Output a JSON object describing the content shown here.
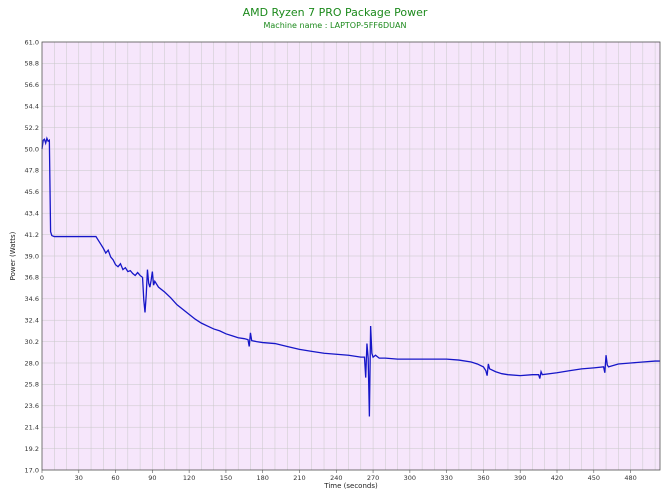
{
  "chart_data": {
    "type": "line",
    "title": "AMD Ryzen 7 PRO Package Power",
    "subtitle": "Machine name : LAPTOP-5FF6DUAN",
    "xlabel": "Time (seconds)",
    "ylabel": "Power (Watts)",
    "xlim": [
      0,
      504
    ],
    "ylim": [
      17.0,
      61.0
    ],
    "x_ticks": [
      0,
      30,
      60,
      90,
      120,
      150,
      180,
      210,
      240,
      270,
      300,
      330,
      360,
      390,
      420,
      450,
      480
    ],
    "y_ticks": [
      "17.0",
      "19.2",
      "21.4",
      "23.6",
      "25.8",
      "28.0",
      "30.2",
      "32.4",
      "34.6",
      "36.8",
      "39.0",
      "41.2",
      "43.4",
      "45.6",
      "47.8",
      "50.0",
      "52.2",
      "54.4",
      "56.6",
      "58.8",
      "61.0"
    ],
    "grid": true,
    "colors": {
      "background": "#f6e6fb",
      "grid": "#c8c8c8",
      "line": "#1616c8"
    },
    "series": [
      {
        "values": [
          [
            0,
            50.0
          ],
          [
            1,
            50.9
          ],
          [
            2,
            51.0
          ],
          [
            3,
            50.6
          ],
          [
            4,
            51.1
          ],
          [
            5,
            50.8
          ],
          [
            6,
            50.9
          ],
          [
            7,
            41.5
          ],
          [
            8,
            41.1
          ],
          [
            10,
            41.0
          ],
          [
            20,
            41.0
          ],
          [
            30,
            41.0
          ],
          [
            40,
            41.0
          ],
          [
            44,
            41.0
          ],
          [
            46,
            40.6
          ],
          [
            48,
            40.2
          ],
          [
            50,
            39.8
          ],
          [
            52,
            39.3
          ],
          [
            54,
            39.6
          ],
          [
            56,
            38.9
          ],
          [
            58,
            38.6
          ],
          [
            60,
            38.1
          ],
          [
            62,
            37.9
          ],
          [
            64,
            38.2
          ],
          [
            66,
            37.6
          ],
          [
            68,
            37.8
          ],
          [
            70,
            37.4
          ],
          [
            72,
            37.5
          ],
          [
            74,
            37.2
          ],
          [
            76,
            37.0
          ],
          [
            78,
            37.3
          ],
          [
            80,
            37.0
          ],
          [
            82,
            36.8
          ],
          [
            83,
            34.5
          ],
          [
            84,
            33.2
          ],
          [
            85,
            35.0
          ],
          [
            86,
            37.6
          ],
          [
            87,
            36.2
          ],
          [
            88,
            35.8
          ],
          [
            89,
            36.5
          ],
          [
            90,
            37.4
          ],
          [
            91,
            36.0
          ],
          [
            92,
            36.4
          ],
          [
            95,
            35.8
          ],
          [
            100,
            35.3
          ],
          [
            105,
            34.7
          ],
          [
            110,
            34.0
          ],
          [
            115,
            33.5
          ],
          [
            120,
            33.0
          ],
          [
            125,
            32.5
          ],
          [
            130,
            32.1
          ],
          [
            135,
            31.8
          ],
          [
            140,
            31.5
          ],
          [
            145,
            31.3
          ],
          [
            150,
            31.0
          ],
          [
            155,
            30.8
          ],
          [
            160,
            30.6
          ],
          [
            165,
            30.5
          ],
          [
            168,
            30.4
          ],
          [
            169,
            29.7
          ],
          [
            170,
            31.1
          ],
          [
            171,
            30.3
          ],
          [
            175,
            30.2
          ],
          [
            180,
            30.1
          ],
          [
            190,
            30.0
          ],
          [
            200,
            29.7
          ],
          [
            210,
            29.4
          ],
          [
            220,
            29.2
          ],
          [
            230,
            29.0
          ],
          [
            240,
            28.9
          ],
          [
            250,
            28.8
          ],
          [
            260,
            28.6
          ],
          [
            263,
            28.6
          ],
          [
            264,
            26.5
          ],
          [
            265,
            30.0
          ],
          [
            266,
            28.5
          ],
          [
            267,
            22.5
          ],
          [
            268,
            31.8
          ],
          [
            269,
            29.0
          ],
          [
            270,
            28.6
          ],
          [
            272,
            28.8
          ],
          [
            275,
            28.5
          ],
          [
            280,
            28.5
          ],
          [
            290,
            28.4
          ],
          [
            300,
            28.4
          ],
          [
            310,
            28.4
          ],
          [
            320,
            28.4
          ],
          [
            330,
            28.4
          ],
          [
            340,
            28.3
          ],
          [
            350,
            28.1
          ],
          [
            355,
            27.9
          ],
          [
            360,
            27.6
          ],
          [
            362,
            27.2
          ],
          [
            363,
            26.7
          ],
          [
            364,
            27.9
          ],
          [
            365,
            27.4
          ],
          [
            370,
            27.1
          ],
          [
            375,
            26.9
          ],
          [
            380,
            26.8
          ],
          [
            390,
            26.7
          ],
          [
            400,
            26.8
          ],
          [
            405,
            26.8
          ],
          [
            406,
            26.4
          ],
          [
            407,
            27.1
          ],
          [
            408,
            26.8
          ],
          [
            420,
            27.0
          ],
          [
            430,
            27.2
          ],
          [
            440,
            27.4
          ],
          [
            450,
            27.5
          ],
          [
            458,
            27.6
          ],
          [
            459,
            27.0
          ],
          [
            460,
            28.8
          ],
          [
            461,
            27.8
          ],
          [
            462,
            27.6
          ],
          [
            470,
            27.9
          ],
          [
            480,
            28.0
          ],
          [
            490,
            28.1
          ],
          [
            500,
            28.2
          ],
          [
            504,
            28.2
          ]
        ]
      }
    ]
  }
}
